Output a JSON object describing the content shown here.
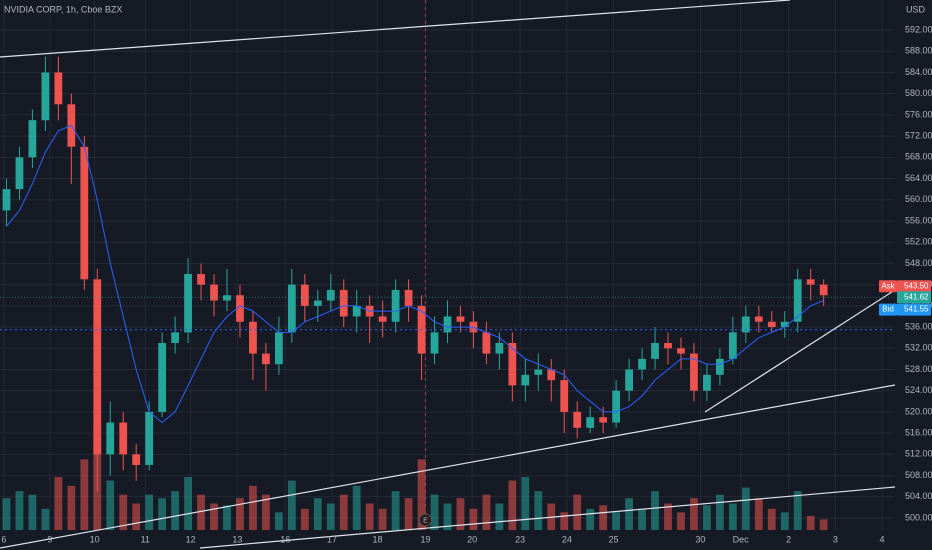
{
  "chart_data": {
    "type": "candlestick",
    "title": "NVIDIA CORP, 1h, Cboe BZX",
    "currency": "USD",
    "open": [
      558,
      562,
      568,
      575,
      584,
      578,
      570,
      545,
      512,
      518,
      512,
      510,
      520,
      533,
      535,
      546,
      544,
      541,
      542,
      537,
      531,
      529,
      535,
      544,
      540,
      541,
      543,
      538,
      540,
      538,
      537,
      543,
      540,
      531,
      535,
      538,
      537,
      535,
      531,
      533,
      525,
      527,
      528,
      526,
      520,
      517,
      519,
      518,
      524,
      528,
      530,
      533,
      532,
      531,
      524,
      527,
      530,
      535,
      538,
      537,
      536,
      537,
      545,
      544
    ],
    "high": [
      564,
      570,
      577,
      587,
      587,
      580,
      572,
      547,
      522,
      520,
      514,
      522,
      535,
      538,
      549,
      548,
      546,
      547,
      544,
      539,
      533,
      538,
      547,
      546,
      543,
      546,
      545,
      543,
      542,
      541,
      545,
      545,
      542,
      538,
      541,
      540,
      539,
      537,
      535,
      535,
      530,
      531,
      530,
      528,
      522,
      521,
      521,
      526,
      530,
      532,
      536,
      535,
      534,
      533,
      529,
      532,
      538,
      540,
      540,
      539,
      539,
      547,
      547,
      545
    ],
    "low": [
      555,
      560,
      566,
      573,
      575,
      563,
      543,
      505,
      508,
      509,
      507,
      509,
      519,
      531,
      533,
      541,
      538,
      539,
      534,
      526,
      524,
      527,
      533,
      537,
      537,
      539,
      536,
      535,
      533,
      534,
      535,
      537,
      526,
      529,
      533,
      535,
      532,
      529,
      528,
      522,
      522,
      524,
      522,
      516,
      515,
      516,
      516,
      517,
      522,
      526,
      528,
      529,
      528,
      522,
      522,
      525,
      529,
      533,
      535,
      535,
      534,
      535,
      541,
      540
    ],
    "close": [
      562,
      568,
      575,
      584,
      578,
      570,
      545,
      512,
      518,
      512,
      510,
      520,
      533,
      535,
      546,
      544,
      541,
      542,
      537,
      531,
      529,
      535,
      544,
      540,
      541,
      543,
      538,
      540,
      538,
      537,
      543,
      540,
      531,
      535,
      538,
      537,
      535,
      531,
      533,
      525,
      527,
      528,
      526,
      520,
      517,
      519,
      518,
      524,
      528,
      530,
      533,
      532,
      531,
      524,
      527,
      530,
      535,
      538,
      537,
      536,
      537,
      545,
      544,
      542
    ],
    "volume": [
      18,
      22,
      20,
      12,
      30,
      25,
      40,
      60,
      28,
      20,
      15,
      20,
      18,
      22,
      30,
      20,
      15,
      14,
      18,
      25,
      20,
      10,
      28,
      12,
      18,
      15,
      20,
      25,
      15,
      12,
      22,
      18,
      40,
      20,
      15,
      18,
      12,
      20,
      15,
      28,
      30,
      22,
      15,
      10,
      20,
      12,
      14,
      10,
      18,
      12,
      22,
      15,
      10,
      18,
      14,
      20,
      15,
      24,
      18,
      12,
      10,
      22,
      8,
      6
    ],
    "volume_lim": [
      0,
      300
    ],
    "ma": [
      555,
      558,
      563,
      569,
      573,
      574,
      570,
      560,
      548,
      538,
      528,
      520,
      518,
      520,
      525,
      530,
      535,
      538,
      540,
      539,
      537,
      535,
      535,
      537,
      538,
      539,
      540,
      540,
      539,
      539,
      539,
      540,
      539,
      537,
      536,
      536,
      536,
      535,
      534,
      532,
      530,
      529,
      528,
      527,
      524,
      522,
      520,
      520,
      521,
      523,
      526,
      528,
      530,
      530,
      529,
      529,
      530,
      532,
      534,
      535,
      536,
      538,
      540,
      541
    ],
    "up_color": "#26a69a",
    "down_color": "#ef5350",
    "ma_color": "#2962ff",
    "xlim": [
      -0.5,
      68.5
    ],
    "xticks": [
      {
        "value": -0.2,
        "label": "6"
      },
      {
        "value": 3.35,
        "label": "9"
      },
      {
        "value": 6.8,
        "label": "10"
      },
      {
        "value": 10.7,
        "label": "11"
      },
      {
        "value": 14.2,
        "label": "12"
      },
      {
        "value": 17.8,
        "label": "13"
      },
      {
        "value": 21.5,
        "label": "16"
      },
      {
        "value": 25.1,
        "label": "17"
      },
      {
        "value": 28.6,
        "label": "18"
      },
      {
        "value": 32.3,
        "label": "19"
      },
      {
        "value": 35.9,
        "label": "20"
      },
      {
        "value": 39.6,
        "label": "23"
      },
      {
        "value": 43.2,
        "label": "24"
      },
      {
        "value": 46.8,
        "label": "25"
      },
      {
        "value": 53.5,
        "label": "30"
      },
      {
        "value": 56.6,
        "label": "Dec"
      },
      {
        "value": 60.3,
        "label": "2"
      },
      {
        "value": 63.9,
        "label": "3"
      },
      {
        "value": 67.5,
        "label": "4"
      }
    ],
    "ylim": [
      497.74,
      597.66
    ],
    "yticks": [
      {
        "value": 500,
        "label": "500.00"
      },
      {
        "value": 504,
        "label": "504.00"
      },
      {
        "value": 508,
        "label": "508.00"
      },
      {
        "value": 512,
        "label": "512.00"
      },
      {
        "value": 516,
        "label": "516.00"
      },
      {
        "value": 520,
        "label": "520.00"
      },
      {
        "value": 524,
        "label": "524.00"
      },
      {
        "value": 528,
        "label": "528.00"
      },
      {
        "value": 532,
        "label": "532.00"
      },
      {
        "value": 536,
        "label": "536.00"
      },
      {
        "value": 540,
        "label": "540.00"
      },
      {
        "value": 544,
        "label": "544.00"
      },
      {
        "value": 548,
        "label": "548.00"
      },
      {
        "value": 552,
        "label": "552.00"
      },
      {
        "value": 556,
        "label": "556.00"
      },
      {
        "value": 560,
        "label": "560.00"
      },
      {
        "value": 564,
        "label": "564.00"
      },
      {
        "value": 568,
        "label": "568.00"
      },
      {
        "value": 572,
        "label": "572.00"
      },
      {
        "value": 576,
        "label": "576.00"
      },
      {
        "value": 580,
        "label": "580.00"
      },
      {
        "value": 584,
        "label": "584.00"
      },
      {
        "value": 588,
        "label": "588.00"
      },
      {
        "value": 592,
        "label": "592.00"
      }
    ],
    "grid": true,
    "price_line": 535.5,
    "ask": {
      "name": "Ask",
      "value": 543.5,
      "label": "543.50",
      "color": "#ef5350"
    },
    "last": {
      "value": 541.62,
      "color": "#26a69a"
    },
    "bid": {
      "name": "Bid",
      "value": 541.55,
      "color": "#2196f3"
    },
    "event_marker": {
      "label": "E",
      "x": 32.3
    }
  }
}
